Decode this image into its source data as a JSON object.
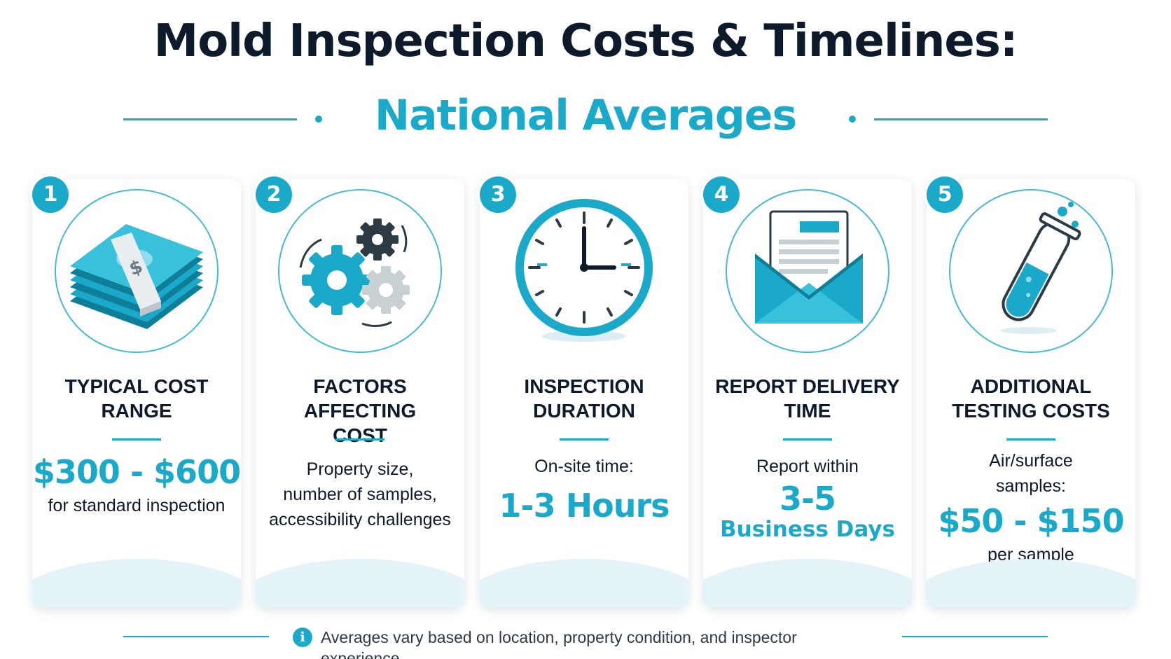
{
  "header": {
    "title": "Mold Inspection Costs & Timelines:",
    "subtitle": "National Averages"
  },
  "cards": [
    {
      "number": "1",
      "icon": "money-stack-icon",
      "title_line1": "TYPICAL COST",
      "title_line2": "RANGE",
      "big": "$300 - $600",
      "small": "for standard inspection"
    },
    {
      "number": "2",
      "icon": "gears-icon",
      "title_line1": "FACTORS AFFECTING",
      "title_line2": "COST",
      "line1": "Property size,",
      "line2": "number of samples,",
      "line3": "accessibility challenges"
    },
    {
      "number": "3",
      "icon": "clock-icon",
      "title_line1": "INSPECTION",
      "title_line2": "DURATION",
      "small": "On-site time:",
      "big": "1-3 Hours"
    },
    {
      "number": "4",
      "icon": "envelope-report-icon",
      "title_line1": "REPORT DELIVERY",
      "title_line2": "TIME",
      "small": "Report within",
      "big": "3-5",
      "mid": "Business Days"
    },
    {
      "number": "5",
      "icon": "test-tube-icon",
      "title_line1": "ADDITIONAL",
      "title_line2": "TESTING COSTS",
      "line1": "Air/surface",
      "line2": "samples:",
      "big": "$50 - $150",
      "small": "per sample"
    }
  ],
  "footer": {
    "icon": "info-icon",
    "icon_glyph": "i",
    "text": "Averages vary based on location, property condition, and inspector experience."
  },
  "colors": {
    "accent": "#1aa9c9",
    "heading": "#0d1a2b",
    "wave": "#e3f3f8"
  }
}
